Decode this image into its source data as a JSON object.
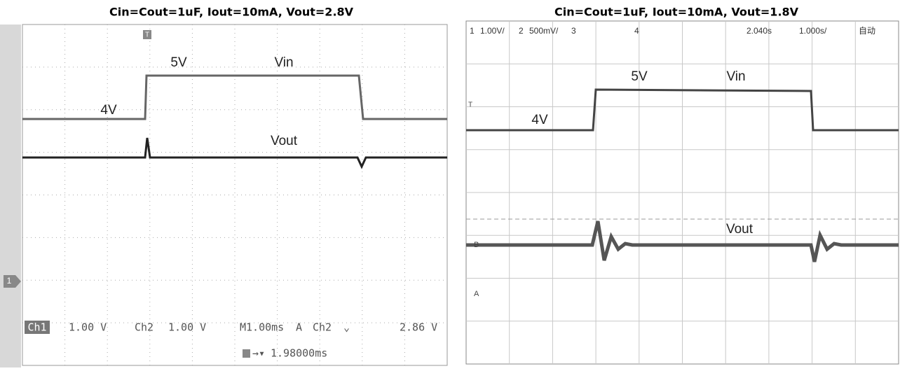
{
  "left": {
    "title": "Cin=Cout=1uF, Iout=10mA, Vout=2.8V",
    "labels": {
      "low": "4V",
      "high": "5V",
      "vin": "Vin",
      "vout": "Vout"
    },
    "trigger_marker": "T",
    "channel_marker": "1",
    "readout": {
      "ch1": "Ch1",
      "ch1_scale": "1.00 V",
      "ch2": "Ch2",
      "ch2_scale": "1.00 V",
      "timebase": "M1.00ms",
      "mode": "A",
      "trig_ch": "Ch2",
      "trig_level": "2.86 V",
      "delay": "1.98000ms"
    }
  },
  "right": {
    "title": "Cin=Cout=1uF, Iout=10mA, Vout=1.8V",
    "labels": {
      "low": "4V",
      "high": "5V",
      "vin": "Vin",
      "vout": "Vout"
    },
    "header": [
      "1",
      "1.00V/",
      "2",
      "500mV/",
      "3",
      "4",
      "2.040s",
      "1.000s/",
      "自动"
    ],
    "markers": {
      "t": "T",
      "b": "B",
      "a": "A"
    }
  }
}
